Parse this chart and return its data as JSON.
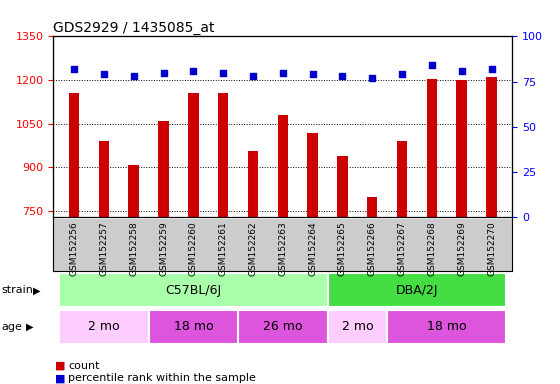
{
  "title": "GDS2929 / 1435085_at",
  "samples": [
    "GSM152256",
    "GSM152257",
    "GSM152258",
    "GSM152259",
    "GSM152260",
    "GSM152261",
    "GSM152262",
    "GSM152263",
    "GSM152264",
    "GSM152265",
    "GSM152266",
    "GSM152267",
    "GSM152268",
    "GSM152269",
    "GSM152270"
  ],
  "counts": [
    1155,
    990,
    910,
    1060,
    1155,
    1155,
    955,
    1080,
    1020,
    940,
    800,
    990,
    1205,
    1200,
    1210
  ],
  "percentile_ranks": [
    82,
    79,
    78,
    80,
    81,
    80,
    78,
    80,
    79,
    78,
    77,
    79,
    84,
    81,
    82
  ],
  "ylim_left": [
    730,
    1350
  ],
  "ylim_right": [
    0,
    100
  ],
  "yticks_left": [
    750,
    900,
    1050,
    1200,
    1350
  ],
  "yticks_right": [
    0,
    25,
    50,
    75,
    100
  ],
  "bar_color": "#cc0000",
  "dot_color": "#0000cc",
  "strain_groups": [
    {
      "label": "C57BL/6J",
      "start": 0,
      "end": 9,
      "color": "#aaffaa"
    },
    {
      "label": "DBA/2J",
      "start": 9,
      "end": 15,
      "color": "#44dd44"
    }
  ],
  "age_groups": [
    {
      "label": "2 mo",
      "start": 0,
      "end": 3,
      "color": "#ffccff"
    },
    {
      "label": "18 mo",
      "start": 3,
      "end": 6,
      "color": "#dd55dd"
    },
    {
      "label": "26 mo",
      "start": 6,
      "end": 9,
      "color": "#dd55dd"
    },
    {
      "label": "2 mo",
      "start": 9,
      "end": 11,
      "color": "#ffccff"
    },
    {
      "label": "18 mo",
      "start": 11,
      "end": 15,
      "color": "#dd55dd"
    }
  ],
  "legend_items": [
    {
      "color": "#cc0000",
      "label": "count"
    },
    {
      "color": "#0000cc",
      "label": "percentile rank within the sample"
    }
  ]
}
